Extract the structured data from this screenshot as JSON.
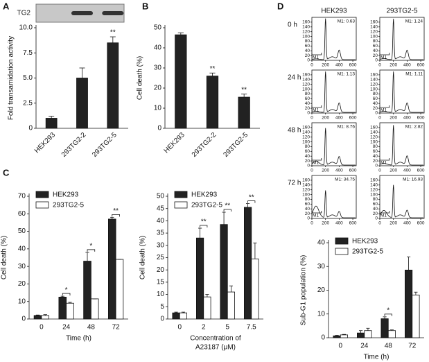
{
  "chart_data": [
    {
      "type": "bar",
      "panel": "A",
      "blot_label": "TG2",
      "ylabel": "Fold transamidation activity",
      "categories": [
        "HEK293",
        "293TG2-2",
        "293TG2-5"
      ],
      "series": [
        {
          "color": "#222222",
          "values": [
            1.0,
            5.0,
            8.5
          ],
          "errors": [
            0.2,
            1.0,
            0.6
          ]
        }
      ],
      "significance": [
        null,
        null,
        "**"
      ],
      "ylim": [
        0,
        10
      ],
      "yticks": [
        0,
        2.5,
        {
          "value": 5,
          "label": "5.0"
        },
        7.5,
        {
          "value": 10,
          "label": "10.0"
        }
      ]
    },
    {
      "type": "bar",
      "panel": "B",
      "ylabel": "Cell death (%)",
      "categories": [
        "HEK293",
        "293TG2-2",
        "293TG2-5"
      ],
      "series": [
        {
          "color": "#222222",
          "values": [
            46.5,
            26,
            15.5
          ],
          "errors": [
            1,
            1.5,
            1.5
          ]
        }
      ],
      "significance": [
        null,
        "**",
        "**"
      ],
      "ylim": [
        0,
        50
      ],
      "yticks": [
        0,
        10,
        20,
        30,
        40,
        50
      ]
    },
    {
      "type": "bar",
      "panel": "C",
      "ylabel": "Cell death (%)",
      "xlabel": [
        "Time (h)"
      ],
      "categories": [
        "0",
        "24",
        "48",
        "72"
      ],
      "series": [
        {
          "name": "HEK293",
          "color": "#222222",
          "values": [
            2,
            12.5,
            33,
            57
          ],
          "errors": [
            0.3,
            0.5,
            5,
            1
          ]
        },
        {
          "name": "293TG2-5",
          "color": "#ffffff",
          "values": [
            2,
            9,
            11.5,
            34
          ],
          "errors": [
            0.5,
            0.5,
            0,
            0
          ]
        }
      ],
      "significance": [
        null,
        "*",
        "*",
        "**"
      ],
      "legend": "top-left",
      "ylim": [
        0,
        70
      ],
      "yticks": [
        0,
        10,
        20,
        30,
        40,
        50,
        60,
        70
      ]
    },
    {
      "type": "bar",
      "ylabel": "Cell death (%)",
      "xlabel": [
        "Concentration of",
        "A23187 (μM)"
      ],
      "categories": [
        "0",
        "2",
        "5",
        "7.5"
      ],
      "series": [
        {
          "name": "HEK293",
          "color": "#222222",
          "values": [
            2.5,
            33,
            38.5,
            45.5
          ],
          "errors": [
            0.3,
            4,
            5,
            1.5
          ]
        },
        {
          "name": "293TG2-5",
          "color": "#ffffff",
          "values": [
            2.5,
            9,
            11,
            24.5
          ],
          "errors": [
            0.3,
            1,
            2.5,
            6.5
          ]
        }
      ],
      "significance": [
        null,
        "**",
        "**",
        "**"
      ],
      "legend": "top-left",
      "ylim": [
        0,
        50
      ],
      "yticks": [
        0,
        5,
        10,
        15,
        20,
        25,
        30,
        35,
        40,
        45,
        50
      ]
    },
    {
      "type": "bar",
      "ylabel": "Sub-G1 population (%)",
      "xlabel": [
        "Time (h)"
      ],
      "categories": [
        "0",
        "24",
        "48",
        "72"
      ],
      "series": [
        {
          "name": "HEK293",
          "color": "#222222",
          "values": [
            0.8,
            2,
            8,
            28.5
          ],
          "errors": [
            0.2,
            1,
            0.8,
            5.5
          ]
        },
        {
          "name": "293TG2-5",
          "color": "#ffffff",
          "values": [
            1.2,
            3,
            3,
            18
          ],
          "errors": [
            0.2,
            1,
            0.3,
            1.2
          ]
        }
      ],
      "significance": [
        null,
        null,
        "*",
        null
      ],
      "legend": "top-left",
      "ylim": [
        0,
        40
      ],
      "yticks": [
        0,
        10,
        20,
        30,
        40
      ]
    }
  ],
  "flow_cytometry": {
    "panel": "D",
    "columns": [
      "HEK293",
      "293TG2-5"
    ],
    "rows": [
      "0 h",
      "24 h",
      "48 h",
      "72 h"
    ],
    "gate_label": "M1",
    "gate_values": [
      [
        "M1: 0.63",
        "M1: 1.24"
      ],
      [
        "M1: 1.13",
        "M1: 1.11"
      ],
      [
        "M1: 8.76",
        "M1: 2.82"
      ],
      [
        "M1: 34.75",
        "M1: 16.93"
      ]
    ],
    "xlim": [
      0,
      650
    ],
    "xticks": [
      0,
      200,
      400,
      600
    ],
    "ylim": [
      0,
      180
    ],
    "yticks": [
      0,
      20,
      40,
      60,
      80,
      100,
      120,
      140,
      160
    ]
  }
}
